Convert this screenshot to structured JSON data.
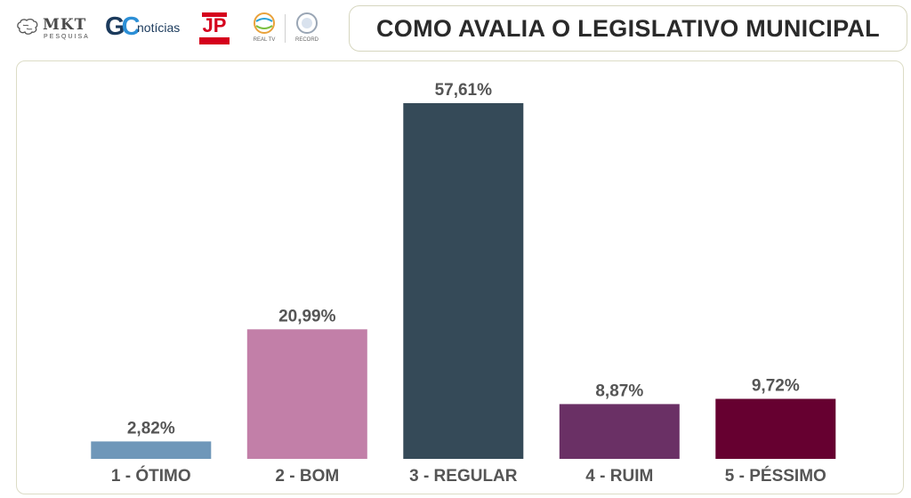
{
  "header": {
    "title": "COMO AVALIA O LEGISLATIVO MUNICIPAL",
    "logos": [
      {
        "name": "mkt-pesquisa",
        "text": "MKT",
        "subtext": "PESQUISA"
      },
      {
        "name": "gc-noticias",
        "text": "GC",
        "subtext": "notícias"
      },
      {
        "name": "jovem-pan-fm",
        "text": "JP"
      },
      {
        "name": "real-tv",
        "text": "REAL TV"
      },
      {
        "name": "record",
        "text": "RECORD"
      }
    ]
  },
  "chart_data": {
    "type": "bar",
    "title": "COMO AVALIA O LEGISLATIVO MUNICIPAL",
    "xlabel": "",
    "ylabel": "",
    "categories": [
      "1 - ÓTIMO",
      "2 - BOM",
      "3 - REGULAR",
      "4 - RUIM",
      "5 - PÉSSIMO"
    ],
    "values": [
      2.82,
      20.99,
      57.61,
      8.87,
      9.72
    ],
    "value_labels": [
      "2,82%",
      "20,99%",
      "57,61%",
      "8,87%",
      "9,72%"
    ],
    "colors": [
      "#6f97b9",
      "#c27fa8",
      "#354a58",
      "#6a3065",
      "#660030"
    ],
    "ylim": [
      0,
      57.61
    ],
    "grid": false,
    "legend": "none"
  }
}
